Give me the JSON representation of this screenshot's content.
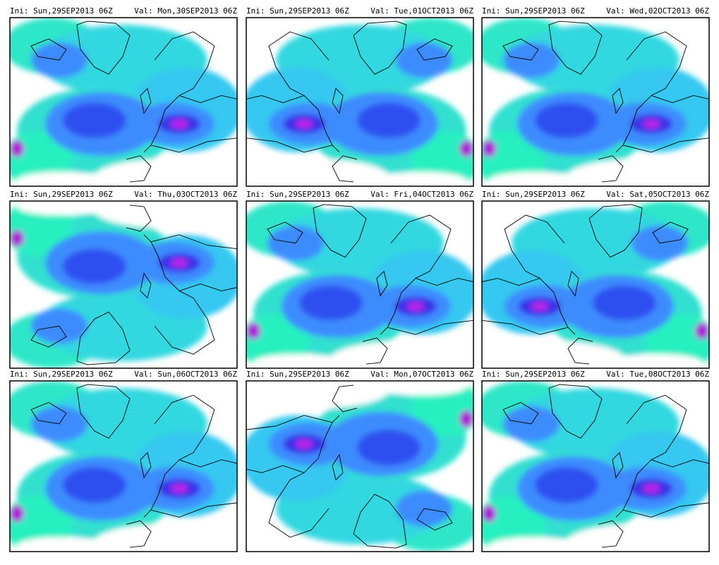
{
  "panels": [
    {
      "init": "Ini: Sun,29SEP2013 06Z",
      "valid": "Val: Mon,30SEP2013 06Z"
    },
    {
      "init": "Ini: Sun,29SEP2013 06Z",
      "valid": "Val: Tue,01OCT2013 06Z"
    },
    {
      "init": "Ini: Sun,29SEP2013 06Z",
      "valid": "Val: Wed,02OCT2013 06Z"
    },
    {
      "init": "Ini: Sun,29SEP2013 06Z",
      "valid": "Val: Thu,03OCT2013 06Z"
    },
    {
      "init": "Ini: Sun,29SEP2013 06Z",
      "valid": "Val: Fri,04OCT2013 06Z"
    },
    {
      "init": "Ini: Sun,29SEP2013 06Z",
      "valid": "Val: Sat,05OCT2013 06Z"
    },
    {
      "init": "Ini: Sun,29SEP2013 06Z",
      "valid": "Val: Sun,06OCT2013 06Z"
    },
    {
      "init": "Ini: Sun,29SEP2013 06Z",
      "valid": "Val: Mon,07OCT2013 06Z"
    },
    {
      "init": "Ini: Sun,29SEP2013 06Z",
      "valid": "Val: Tue,08OCT2013 06Z"
    }
  ]
}
